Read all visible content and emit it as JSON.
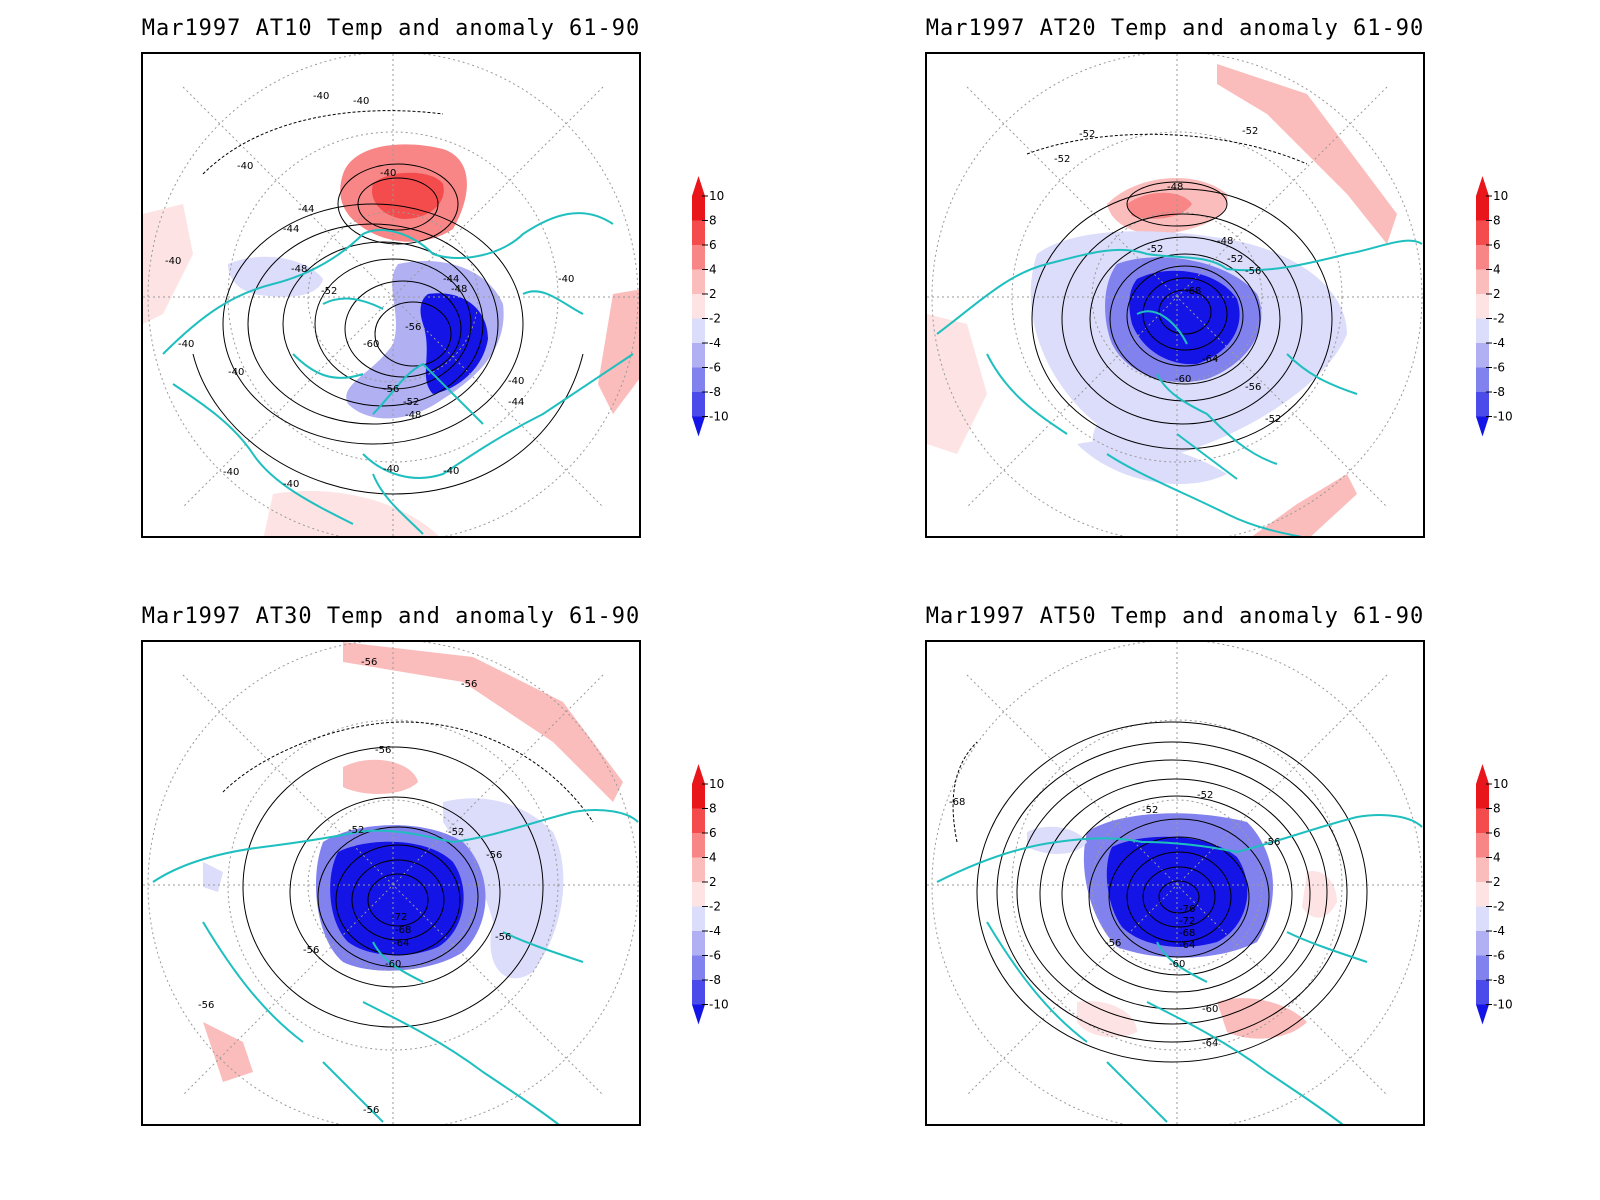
{
  "panels": [
    {
      "title": "Mar1997 AT10 Temp and anomaly 61-90",
      "contour_labels": [
        "-40",
        "-40",
        "-40",
        "-44",
        "-44",
        "-40",
        "-48",
        "-52",
        "-56",
        "-60",
        "-44",
        "-48",
        "-56",
        "-52",
        "-48",
        "-40",
        "-44",
        "-40",
        "-40",
        "-40",
        "-40",
        "-40",
        "-40",
        "-40",
        "-40"
      ]
    },
    {
      "title": "Mar1997 AT20 Temp and anomaly 61-90",
      "contour_labels": [
        "-52",
        "-52",
        "-52",
        "-48",
        "-48",
        "-52",
        "-52",
        "-56",
        "-68",
        "-64",
        "-60",
        "-56",
        "-52"
      ]
    },
    {
      "title": "Mar1997 AT30 Temp and anomaly 61-90",
      "contour_labels": [
        "-56",
        "-56",
        "-56",
        "-52",
        "-52",
        "-56",
        "-72",
        "-68",
        "-64",
        "-60",
        "-56",
        "-56",
        "-56",
        "-56"
      ]
    },
    {
      "title": "Mar1997 AT50 Temp and anomaly 61-90",
      "contour_labels": [
        "-68",
        "-52",
        "-52",
        "-56",
        "-76",
        "-72",
        "-68",
        "-64",
        "-56",
        "-60",
        "-60",
        "-64"
      ]
    }
  ],
  "colorbar": {
    "labels": [
      "10",
      "8",
      "6",
      "4",
      "2",
      "-2",
      "-4",
      "-6",
      "-8",
      "-10"
    ],
    "colors": [
      "#e8161b",
      "#f44c4c",
      "#f88686",
      "#fbbcbc",
      "#fde3e3",
      "#ffffff",
      "#dcdcfb",
      "#b0b0f3",
      "#8282ee",
      "#4b4bea",
      "#1414e6"
    ]
  },
  "colors": {
    "coast": "#1fbfbf",
    "contour": "#000000",
    "grid": "#9a9a9a"
  }
}
